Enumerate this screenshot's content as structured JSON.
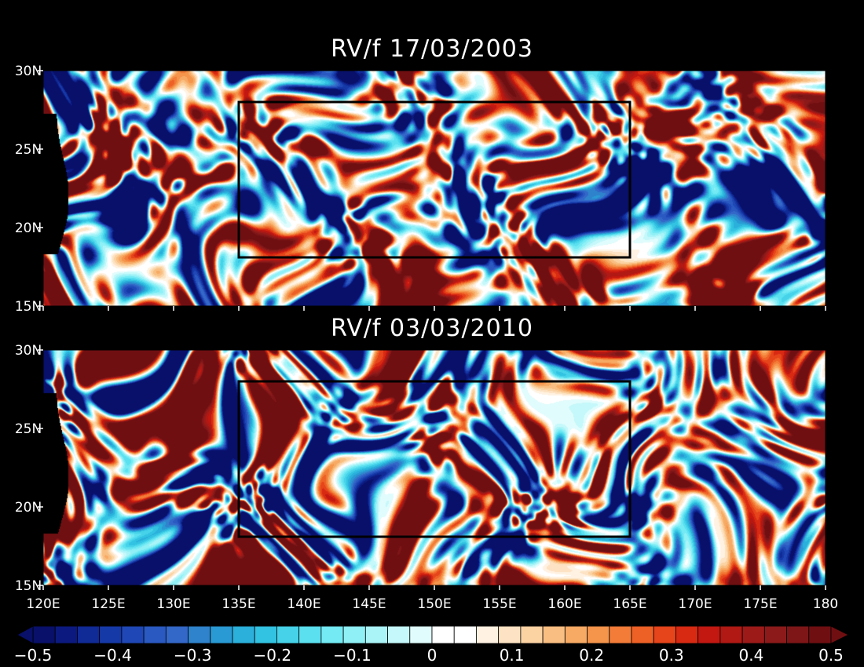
{
  "panels": [
    {
      "title": "RV/f 17/03/2003",
      "seed": 1234
    },
    {
      "title": "RV/f 03/03/2010",
      "seed": 98765
    }
  ],
  "lat_ticks": [
    "30N",
    "25N",
    "20N",
    "15N"
  ],
  "lon_ticks": [
    "120E",
    "125E",
    "130E",
    "135E",
    "140E",
    "145E",
    "150E",
    "155E",
    "160E",
    "165E",
    "170E",
    "175E",
    "180"
  ],
  "box": {
    "lon": [
      135,
      165
    ],
    "lat": [
      18.1,
      28
    ]
  },
  "extent": {
    "lon": [
      120,
      180
    ],
    "lat": [
      15,
      30
    ]
  },
  "colorbar": {
    "labels": [
      "-0.5",
      "-0.4",
      "-0.3",
      "-0.2",
      "-0.1",
      "0",
      "0.1",
      "0.2",
      "0.3",
      "0.4",
      "0.5"
    ],
    "range": [
      -0.5,
      0.5
    ],
    "colors": [
      "#08106a",
      "#0c1a80",
      "#102a96",
      "#1639a8",
      "#1f48b6",
      "#2a59c2",
      "#3468c8",
      "#2f83cc",
      "#2a9ad4",
      "#2bb0db",
      "#33c3e2",
      "#46d3ea",
      "#5be0f0",
      "#73eaf4",
      "#8ff0f6",
      "#aaf4f8",
      "#c5f8fa",
      "#e0fcfc",
      "#ffffff",
      "#ffffff",
      "#fff2e2",
      "#fde3c3",
      "#fbd2a2",
      "#f9bf82",
      "#f7aa64",
      "#f5944b",
      "#f27c38",
      "#ee6126",
      "#e6441a",
      "#d82a13",
      "#c21811",
      "#b01914",
      "#9c1a18",
      "#8c1a1a",
      "#7e1617",
      "#700f12"
    ]
  }
}
